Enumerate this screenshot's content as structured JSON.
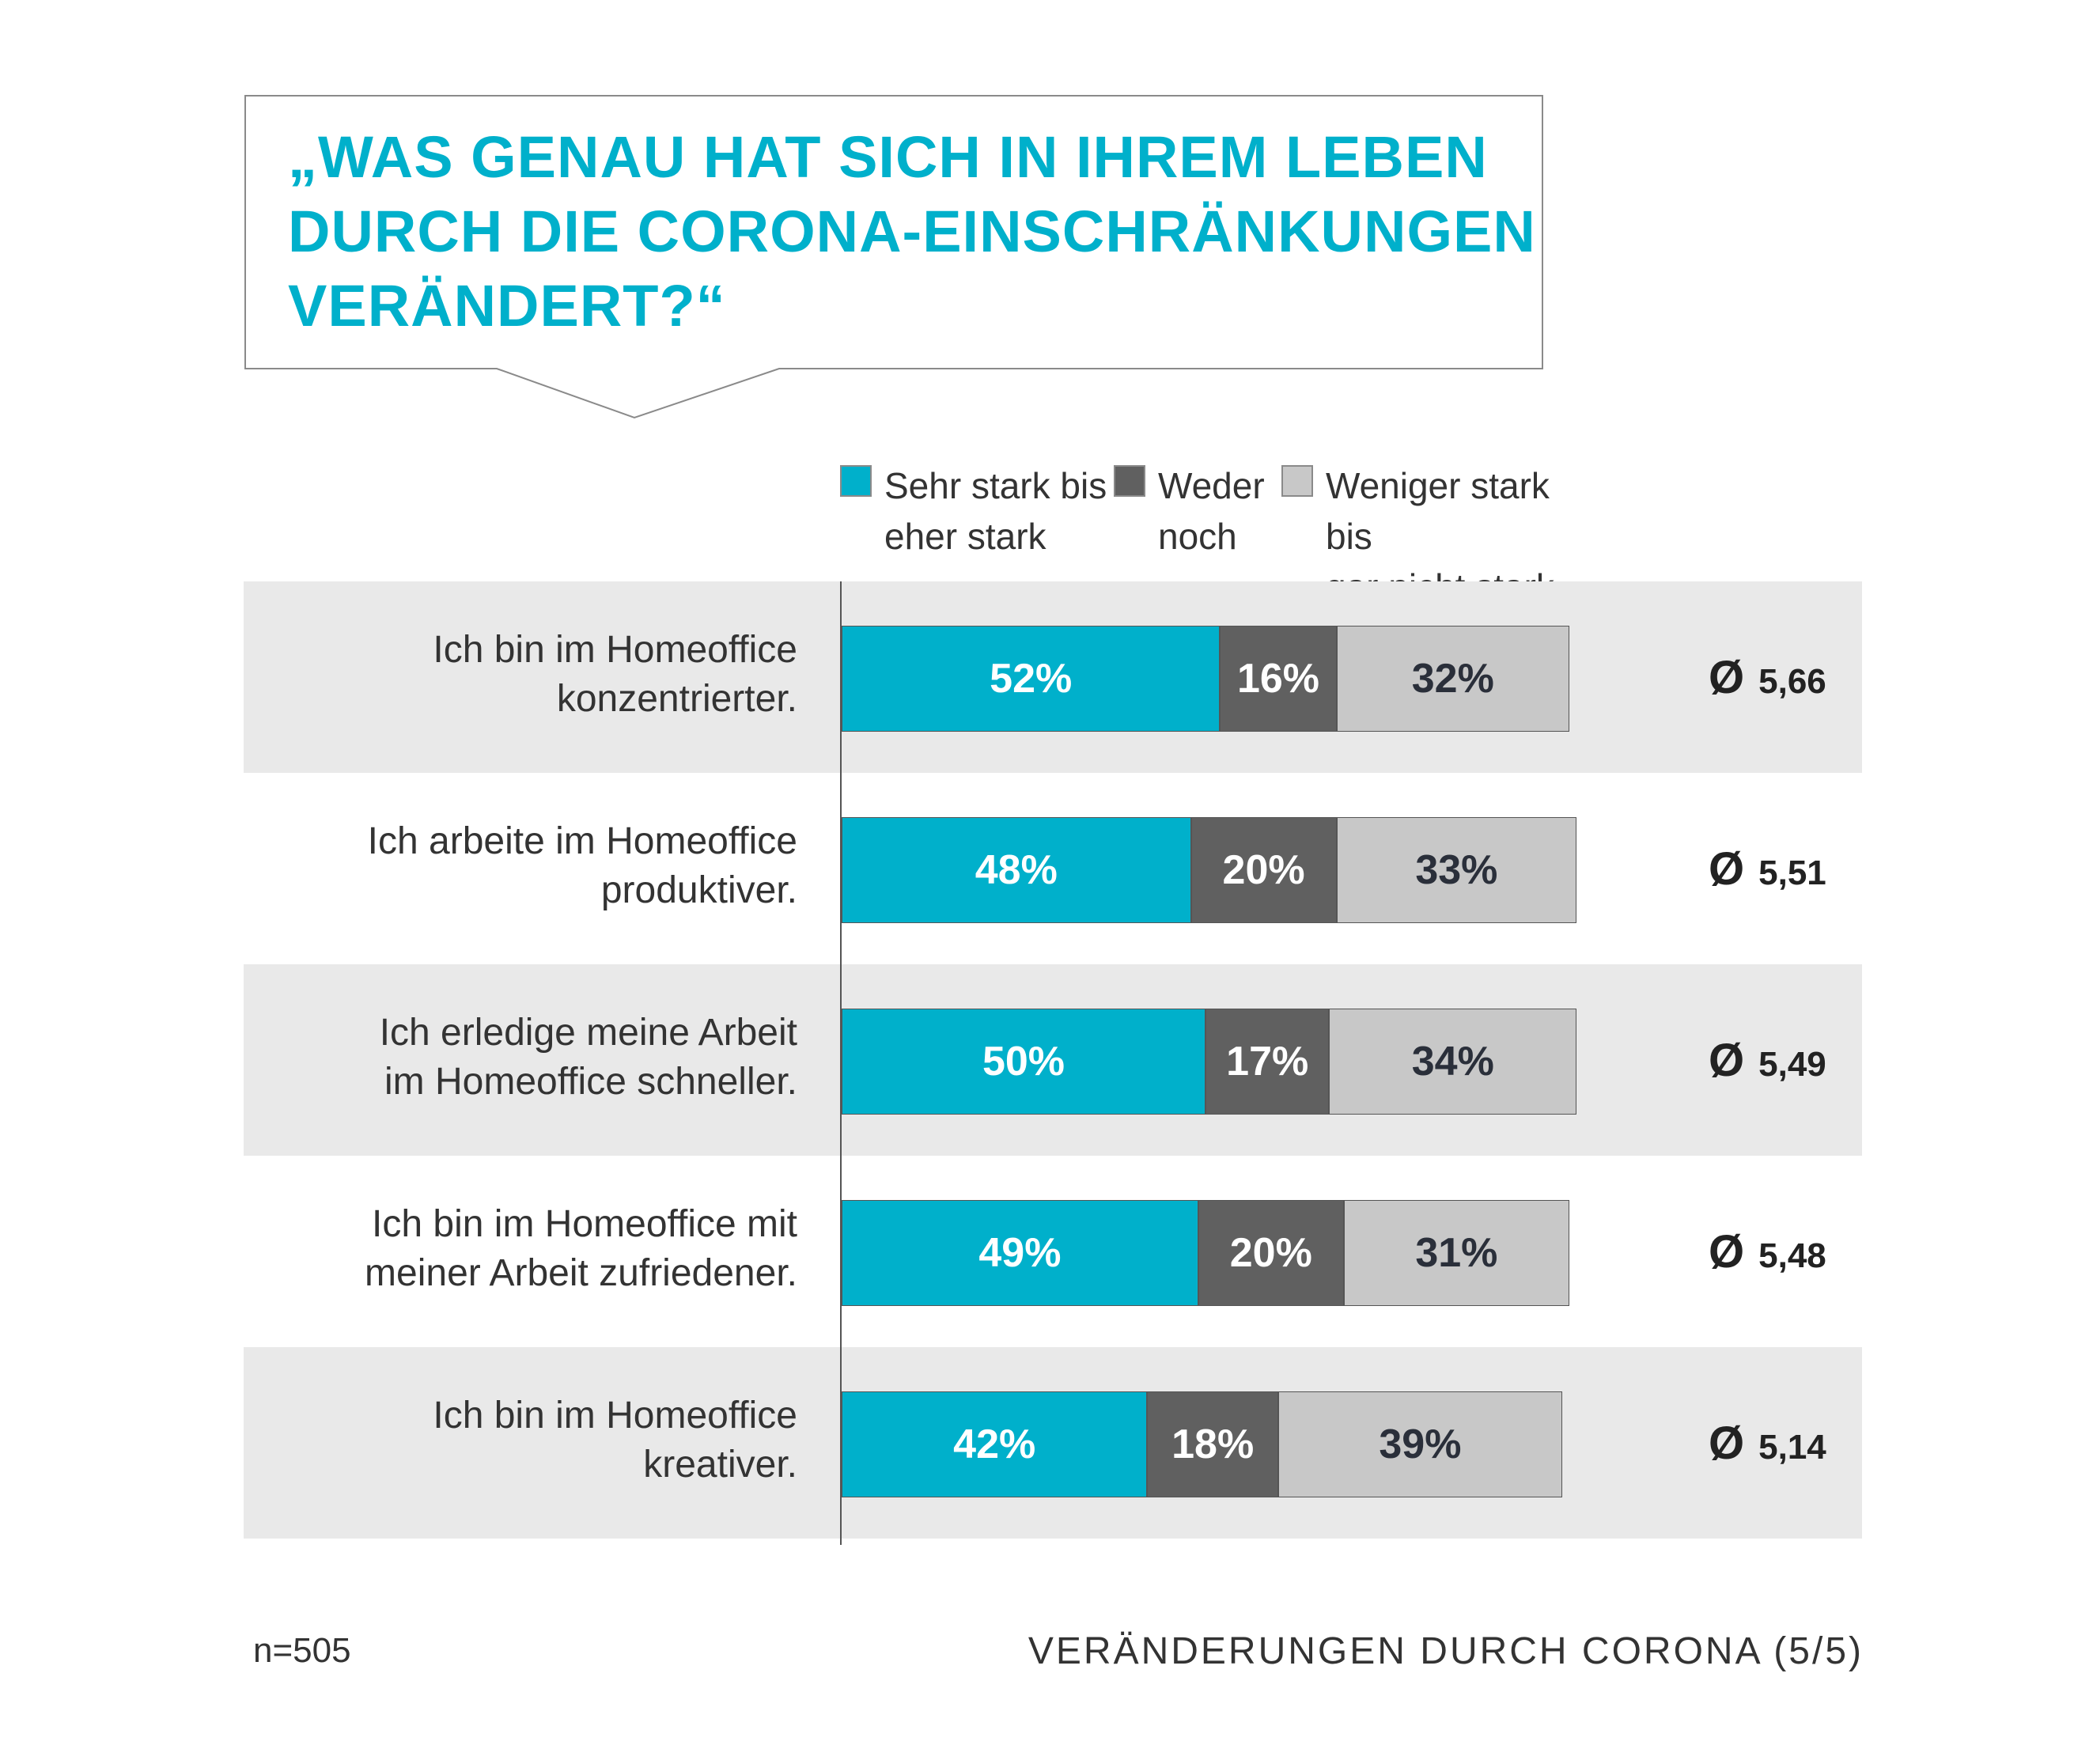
{
  "title_lines": [
    "„WAS GENAU HAT SICH IN IHREM LEBEN",
    "DURCH DIE CORONA-EINSCHRÄNKUNGEN",
    "VERÄNDERT?“"
  ],
  "colors": {
    "accent": "#00b0cb",
    "neutral": "#606060",
    "light": "#c8c8c8",
    "row_band": "#e9e9e9"
  },
  "chart_data": {
    "type": "bar",
    "orientation": "horizontal",
    "stacked": true,
    "categories": [
      "Ich bin im Homeoffice konzentrierter.",
      "Ich arbeite im Homeoffice produktiver.",
      "Ich erledige meine Arbeit im Homeoffice schneller.",
      "Ich bin im Homeoffice mit meiner Arbeit zufriedener.",
      "Ich bin im Homeoffice kreativer."
    ],
    "category_lines": [
      [
        "Ich bin im Homeoffice",
        "konzentrierter."
      ],
      [
        "Ich arbeite im Homeoffice",
        "produktiver."
      ],
      [
        "Ich erledige meine Arbeit",
        "im Homeoffice schneller."
      ],
      [
        "Ich bin im Homeoffice mit",
        "meiner Arbeit zufriedener."
      ],
      [
        "Ich bin im Homeoffice",
        "kreativer."
      ]
    ],
    "series": [
      {
        "name": "Sehr stark bis eher stark",
        "name_lines": [
          "Sehr stark bis",
          "eher stark"
        ],
        "color": "#00b0cb",
        "label_color": "#ffffff",
        "values": [
          52,
          48,
          50,
          49,
          42
        ]
      },
      {
        "name": "Weder noch",
        "name_lines": [
          "Weder",
          "noch"
        ],
        "color": "#606060",
        "label_color": "#ffffff",
        "values": [
          16,
          20,
          17,
          20,
          18
        ]
      },
      {
        "name": "Weniger stark bis gar nicht stark",
        "name_lines": [
          "Weniger stark bis",
          "gar nicht stark"
        ],
        "color": "#c8c8c8",
        "label_color": "#2a2f3a",
        "values": [
          32,
          33,
          34,
          31,
          39
        ]
      }
    ],
    "value_labels": [
      [
        "52%",
        "16%",
        "32%"
      ],
      [
        "48%",
        "20%",
        "33%"
      ],
      [
        "50%",
        "17%",
        "34%"
      ],
      [
        "49%",
        "20%",
        "31%"
      ],
      [
        "42%",
        "18%",
        "39%"
      ]
    ],
    "averages": {
      "symbol": "Ø",
      "values": [
        "5,66",
        "5,51",
        "5,49",
        "5,48",
        "5,14"
      ]
    },
    "xlim": [
      0,
      100
    ],
    "legend_position": "top",
    "grid": false
  },
  "sample_size": "n=505",
  "footer": "VERÄNDERUNGEN DURCH CORONA (5/5)"
}
